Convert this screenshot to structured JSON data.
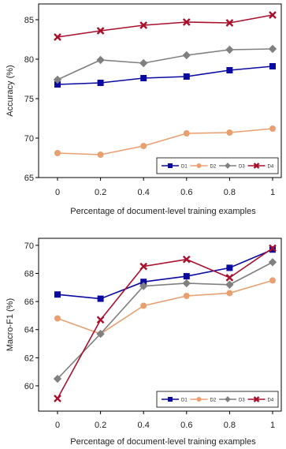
{
  "chart_data": [
    {
      "type": "line",
      "x": [
        0,
        0.2,
        0.4,
        0.6,
        0.8,
        1
      ],
      "xticks": [
        "0",
        "0.2",
        "0.4",
        "0.6",
        "0.8",
        "1"
      ],
      "xlabel": "Percentage of document-level training examples",
      "ylabel": "Accuracy (%)",
      "ylim": [
        65,
        87
      ],
      "yticks": [
        "65",
        "70",
        "75",
        "80",
        "85"
      ],
      "grid": false,
      "legend": "bottom-right",
      "series": [
        {
          "name": "D1",
          "color": "#0a0aa0",
          "marker": "square",
          "values": [
            76.8,
            77.0,
            77.6,
            77.8,
            78.6,
            79.1
          ]
        },
        {
          "name": "D2",
          "color": "#e8a070",
          "marker": "circle",
          "values": [
            68.1,
            67.9,
            69.0,
            70.6,
            70.7,
            71.2
          ]
        },
        {
          "name": "D3",
          "color": "#808080",
          "marker": "diamond",
          "values": [
            77.4,
            79.9,
            79.5,
            80.5,
            81.2,
            81.3
          ]
        },
        {
          "name": "D4",
          "color": "#a8102c",
          "marker": "x",
          "values": [
            82.8,
            83.6,
            84.3,
            84.7,
            84.6,
            85.6
          ]
        }
      ]
    },
    {
      "type": "line",
      "x": [
        0,
        0.2,
        0.4,
        0.6,
        0.8,
        1
      ],
      "xticks": [
        "0",
        "0.2",
        "0.4",
        "0.6",
        "0.8",
        "1"
      ],
      "xlabel": "Percentage of document-level training examples",
      "ylabel": "Macro-F1 (%)",
      "ylim": [
        58.2,
        70.5
      ],
      "yticks": [
        "60",
        "62",
        "64",
        "66",
        "68",
        "70"
      ],
      "grid": false,
      "legend": "bottom-right",
      "series": [
        {
          "name": "D1",
          "color": "#0a0aa0",
          "marker": "square",
          "values": [
            66.5,
            66.2,
            67.4,
            67.8,
            68.4,
            69.7
          ]
        },
        {
          "name": "D2",
          "color": "#e8a070",
          "marker": "circle",
          "values": [
            64.8,
            63.7,
            65.7,
            66.4,
            66.6,
            67.5
          ]
        },
        {
          "name": "D3",
          "color": "#808080",
          "marker": "diamond",
          "values": [
            60.5,
            63.7,
            67.1,
            67.3,
            67.2,
            68.8
          ]
        },
        {
          "name": "D4",
          "color": "#a8102c",
          "marker": "x",
          "values": [
            59.1,
            64.7,
            68.5,
            69.0,
            67.7,
            69.8
          ]
        }
      ]
    }
  ]
}
